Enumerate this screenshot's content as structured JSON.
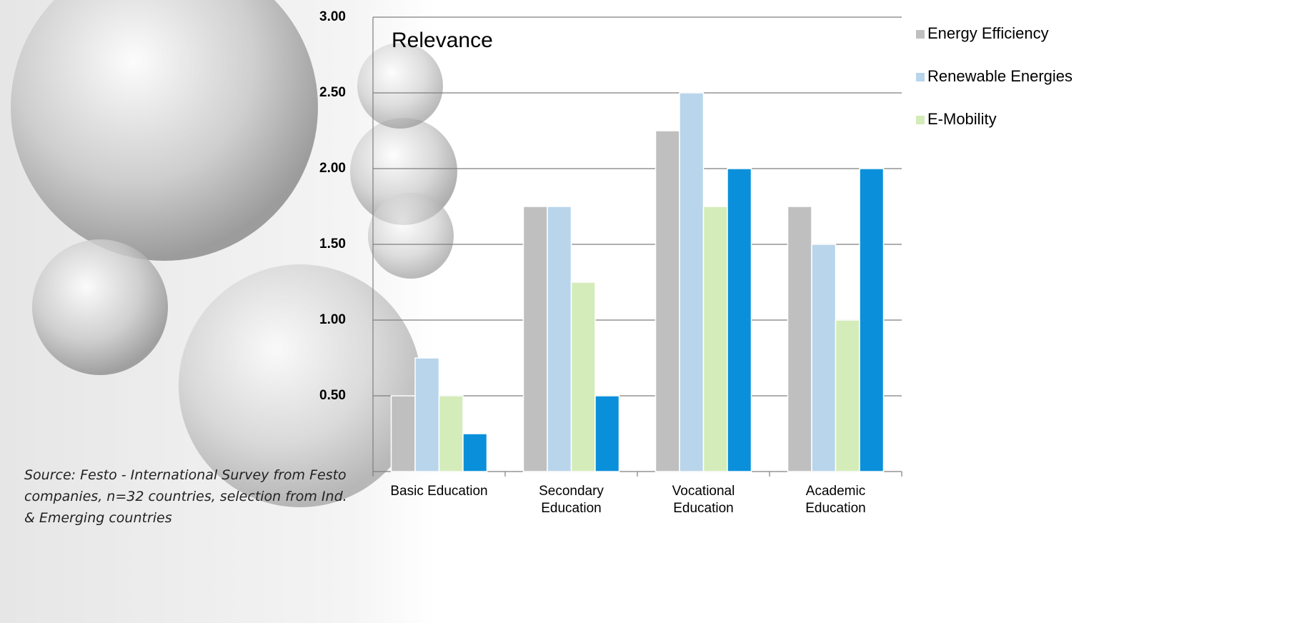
{
  "chart_data": {
    "type": "bar",
    "annotation": "Relevance",
    "source": "Source: Festo - International Survey from Festo companies, n=32 countries, selection from Ind. & Emerging countries",
    "categories": [
      "Basic Education",
      "Secondary Education",
      "Vocational Education",
      "Academic Education"
    ],
    "series": [
      {
        "name": "Energy Efficiency",
        "color": "#bfbfbf",
        "values": [
          0.5,
          1.75,
          2.25,
          1.75
        ]
      },
      {
        "name": "Renewable Energies",
        "color": "#b8d5eb",
        "values": [
          0.75,
          1.75,
          2.5,
          1.5
        ]
      },
      {
        "name": "E-Mobility",
        "color": "#d4ecb9",
        "values": [
          0.5,
          1.25,
          1.75,
          1.0
        ]
      },
      {
        "color": "#0a90da",
        "values": [
          0.25,
          0.5,
          2.0,
          2.0
        ]
      }
    ],
    "ylim": [
      0,
      3
    ],
    "yticks": [
      {
        "value": 0.5,
        "label": "0.50"
      },
      {
        "value": 1,
        "label": "1.00"
      },
      {
        "value": 1.5,
        "label": "1.50"
      },
      {
        "value": 2,
        "label": "2.00"
      },
      {
        "value": 2.5,
        "label": "2.50"
      },
      {
        "value": 3,
        "label": "3.00"
      }
    ],
    "grid": true,
    "legend": "right"
  }
}
